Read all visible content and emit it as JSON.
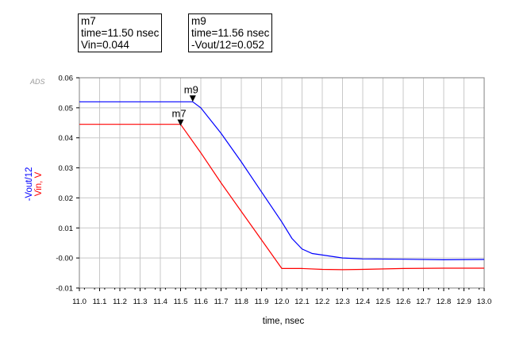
{
  "markers": [
    {
      "name": "m7",
      "line1": "time=11.50 nsec",
      "line2": "Vin=0.044",
      "x": 11.5,
      "y": 0.044,
      "series": "Vin"
    },
    {
      "name": "m9",
      "line1": "time=11.56 nsec",
      "line2": "-Vout/12=0.052",
      "x": 11.56,
      "y": 0.052,
      "series": "Vout"
    }
  ],
  "chart_data": {
    "type": "line",
    "watermark": "ADS",
    "xlabel": "time, nsec",
    "ylabel_series": [
      {
        "text": "-Vout/12",
        "color": "#0000ff"
      },
      {
        "text": "Vin, V",
        "color": "#ff0000"
      }
    ],
    "xlim": [
      11.0,
      13.0
    ],
    "ylim": [
      -0.01,
      0.06
    ],
    "x_ticks": [
      "11.0",
      "11.1",
      "11.2",
      "11.3",
      "11.4",
      "11.5",
      "11.6",
      "11.7",
      "11.8",
      "11.9",
      "12.0",
      "12.1",
      "12.2",
      "12.3",
      "12.4",
      "12.5",
      "12.6",
      "12.7",
      "12.8",
      "12.9",
      "13.0"
    ],
    "y_ticks": [
      "0.06",
      "0.05",
      "0.04",
      "0.03",
      "0.02",
      "0.01",
      "-0.00",
      "-0.01"
    ],
    "grid": true,
    "series": [
      {
        "name": "-Vout/12",
        "color": "#0000ff",
        "x": [
          11.0,
          11.52,
          11.56,
          11.6,
          11.7,
          11.8,
          11.9,
          12.0,
          12.05,
          12.1,
          12.15,
          12.2,
          12.3,
          12.4,
          12.6,
          12.8,
          13.0
        ],
        "y": [
          0.052,
          0.052,
          0.052,
          0.05,
          0.0415,
          0.032,
          0.022,
          0.012,
          0.0065,
          0.003,
          0.0015,
          0.001,
          0.0,
          -0.0003,
          -0.0004,
          -0.0006,
          -0.0005
        ]
      },
      {
        "name": "Vin, V",
        "color": "#ff0000",
        "x": [
          11.0,
          11.5,
          11.6,
          11.7,
          11.8,
          11.9,
          12.0,
          12.1,
          12.2,
          12.3,
          12.4,
          12.6,
          12.8,
          13.0
        ],
        "y": [
          0.0445,
          0.0445,
          0.035,
          0.025,
          0.0155,
          0.006,
          -0.0035,
          -0.0035,
          -0.0038,
          -0.0039,
          -0.0038,
          -0.0035,
          -0.0034,
          -0.0034
        ]
      }
    ]
  }
}
